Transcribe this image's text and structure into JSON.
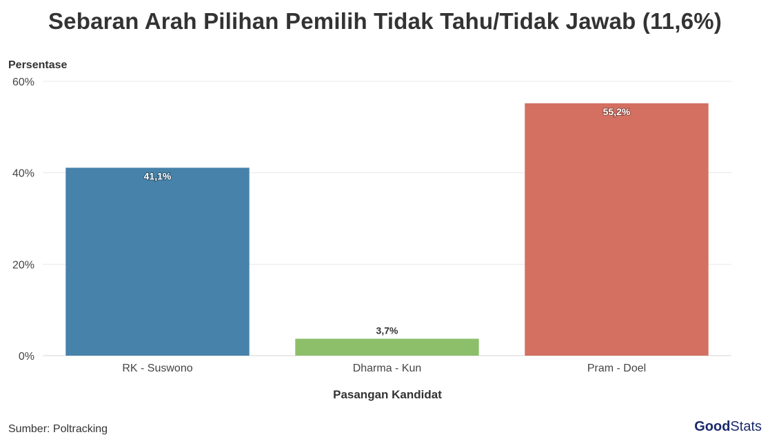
{
  "title": "Sebaran Arah Pilihan Pemilih Tidak Tahu/Tidak Jawab (11,6%)",
  "source": "Sumber: Poltracking",
  "logo": {
    "part1": "Good",
    "part2": "Stats",
    "color": "#1a2a6c"
  },
  "chart_data": {
    "type": "bar",
    "title": "Sebaran Arah Pilihan Pemilih Tidak Tahu/Tidak Jawab (11,6%)",
    "ylabel": "Persentase",
    "xlabel": "Pasangan Kandidat",
    "categories": [
      "RK - Suswono",
      "Dharma - Kun",
      "Pram - Doel"
    ],
    "values": [
      41.1,
      3.7,
      55.2
    ],
    "data_labels": [
      "41,1%",
      "3,7%",
      "55,2%"
    ],
    "colors": [
      "#4682a9",
      "#8dbf6a",
      "#d47061"
    ],
    "ylim": [
      0,
      60
    ],
    "yticks": [
      0,
      20,
      40,
      60
    ],
    "ytick_labels": [
      "0%",
      "20%",
      "40%",
      "60%"
    ],
    "grid": true,
    "legend": "none"
  }
}
